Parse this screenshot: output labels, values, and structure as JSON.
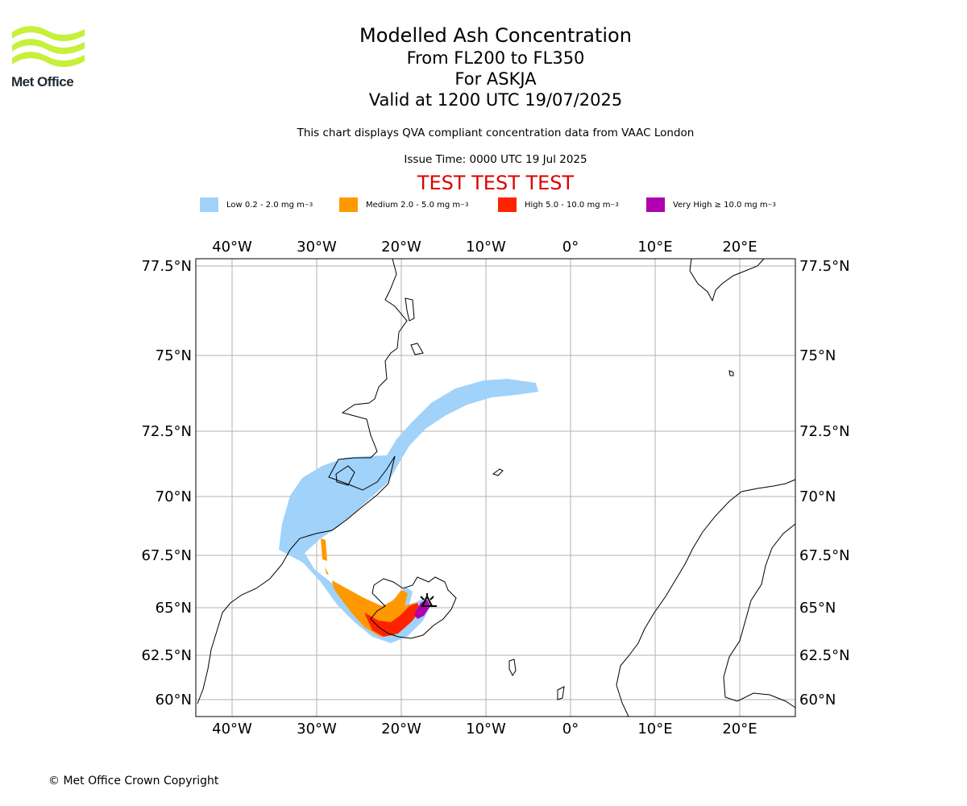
{
  "logo": {
    "text": "Met Office"
  },
  "title": {
    "line1": "Modelled Ash Concentration",
    "line2": "From FL200 to FL350",
    "line3": "For ASKJA",
    "line4": "Valid at 1200 UTC 19/07/2025"
  },
  "subtitle": "This chart displays QVA compliant concentration data from VAAC London",
  "issue_time": "Issue Time: 0000 UTC 19 Jul 2025",
  "test_banner": "TEST TEST TEST",
  "legend": [
    {
      "label": "Low 0.2 - 2.0 mg m",
      "unit_exp": "−3",
      "color": "#a0d2fa"
    },
    {
      "label": "Medium 2.0 - 5.0 mg m",
      "unit_exp": "−3",
      "color": "#ff9900"
    },
    {
      "label": "High 5.0 - 10.0 mg m",
      "unit_exp": "−3",
      "color": "#ff2200"
    },
    {
      "label": "Very High ≥ 10.0 mg m",
      "unit_exp": "−3",
      "color": "#b000b0"
    }
  ],
  "map": {
    "lon_ticks": [
      "40°W",
      "30°W",
      "20°W",
      "10°W",
      "0°",
      "10°E",
      "20°E"
    ],
    "lat_ticks": [
      "77.5°N",
      "75°N",
      "72.5°N",
      "70°N",
      "67.5°N",
      "65°N",
      "62.5°N",
      "60°N"
    ],
    "volcano": "ASKJA"
  },
  "copyright": "© Met Office Crown Copyright"
}
